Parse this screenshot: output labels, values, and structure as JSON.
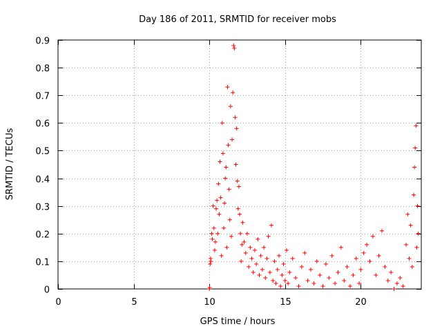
{
  "chart_data": {
    "type": "scatter",
    "title": "Day 186 of 2011, SRMTID for receiver mobs",
    "xlabel": "GPS time / hours",
    "ylabel": "SRMTID / TECUs",
    "xlim": [
      0,
      24
    ],
    "ylim": [
      0,
      0.9
    ],
    "xticks": [
      0,
      5,
      10,
      15,
      20
    ],
    "xtick_labels": [
      "0",
      "5",
      "10",
      "15",
      "20"
    ],
    "yticks": [
      0,
      0.1,
      0.2,
      0.3,
      0.4,
      0.5,
      0.6,
      0.7,
      0.8,
      0.9
    ],
    "ytick_labels": [
      "0",
      "0.1",
      "0.2",
      "0.3",
      "0.4",
      "0.5",
      "0.6",
      "0.7",
      "0.8",
      "0.9"
    ],
    "grid": true,
    "marker": "+",
    "color": "#ff0000",
    "series": [
      {
        "name": "SRMTID",
        "points": [
          [
            10.0,
            0.0
          ],
          [
            10.02,
            0.005
          ],
          [
            10.05,
            0.09
          ],
          [
            10.08,
            0.11
          ],
          [
            10.1,
            0.1
          ],
          [
            10.15,
            0.2
          ],
          [
            10.2,
            0.18
          ],
          [
            10.25,
            0.3
          ],
          [
            10.3,
            0.22
          ],
          [
            10.35,
            0.14
          ],
          [
            10.4,
            0.17
          ],
          [
            10.45,
            0.29
          ],
          [
            10.5,
            0.32
          ],
          [
            10.55,
            0.2
          ],
          [
            10.6,
            0.38
          ],
          [
            10.65,
            0.27
          ],
          [
            10.7,
            0.46
          ],
          [
            10.75,
            0.33
          ],
          [
            10.8,
            0.12
          ],
          [
            10.85,
            0.6
          ],
          [
            10.9,
            0.49
          ],
          [
            10.95,
            0.22
          ],
          [
            11.0,
            0.31
          ],
          [
            11.05,
            0.4
          ],
          [
            11.1,
            0.44
          ],
          [
            11.15,
            0.15
          ],
          [
            11.2,
            0.73
          ],
          [
            11.25,
            0.52
          ],
          [
            11.3,
            0.36
          ],
          [
            11.35,
            0.25
          ],
          [
            11.4,
            0.66
          ],
          [
            11.45,
            0.19
          ],
          [
            11.5,
            0.54
          ],
          [
            11.55,
            0.71
          ],
          [
            11.6,
            0.88
          ],
          [
            11.65,
            0.87
          ],
          [
            11.7,
            0.62
          ],
          [
            11.75,
            0.45
          ],
          [
            11.8,
            0.58
          ],
          [
            11.85,
            0.39
          ],
          [
            11.9,
            0.29
          ],
          [
            11.95,
            0.37
          ],
          [
            12.0,
            0.27
          ],
          [
            12.05,
            0.2
          ],
          [
            12.1,
            0.1
          ],
          [
            12.15,
            0.16
          ],
          [
            12.2,
            0.24
          ],
          [
            12.3,
            0.17
          ],
          [
            12.4,
            0.13
          ],
          [
            12.5,
            0.2
          ],
          [
            12.6,
            0.08
          ],
          [
            12.7,
            0.15
          ],
          [
            12.8,
            0.11
          ],
          [
            12.9,
            0.06
          ],
          [
            13.0,
            0.14
          ],
          [
            13.1,
            0.09
          ],
          [
            13.2,
            0.18
          ],
          [
            13.3,
            0.05
          ],
          [
            13.4,
            0.12
          ],
          [
            13.5,
            0.07
          ],
          [
            13.6,
            0.15
          ],
          [
            13.7,
            0.04
          ],
          [
            13.8,
            0.11
          ],
          [
            13.9,
            0.19
          ],
          [
            14.0,
            0.06
          ],
          [
            14.1,
            0.23
          ],
          [
            14.2,
            0.03
          ],
          [
            14.3,
            0.1
          ],
          [
            14.4,
            0.02
          ],
          [
            14.5,
            0.07
          ],
          [
            14.6,
            0.12
          ],
          [
            14.7,
            0.01
          ],
          [
            14.8,
            0.05
          ],
          [
            14.9,
            0.09
          ],
          [
            15.0,
            0.03
          ],
          [
            15.1,
            0.14
          ],
          [
            15.2,
            0.02
          ],
          [
            15.3,
            0.06
          ],
          [
            15.5,
            0.11
          ],
          [
            15.7,
            0.04
          ],
          [
            15.9,
            0.01
          ],
          [
            16.1,
            0.08
          ],
          [
            16.3,
            0.13
          ],
          [
            16.5,
            0.03
          ],
          [
            16.7,
            0.07
          ],
          [
            16.9,
            0.02
          ],
          [
            17.1,
            0.1
          ],
          [
            17.3,
            0.05
          ],
          [
            17.5,
            0.01
          ],
          [
            17.7,
            0.09
          ],
          [
            17.9,
            0.04
          ],
          [
            18.1,
            0.12
          ],
          [
            18.3,
            0.02
          ],
          [
            18.5,
            0.06
          ],
          [
            18.7,
            0.15
          ],
          [
            18.9,
            0.03
          ],
          [
            19.1,
            0.08
          ],
          [
            19.3,
            0.01
          ],
          [
            19.5,
            0.05
          ],
          [
            19.7,
            0.11
          ],
          [
            19.9,
            0.02
          ],
          [
            20.0,
            0.07
          ],
          [
            20.2,
            0.13
          ],
          [
            20.4,
            0.16
          ],
          [
            20.6,
            0.1
          ],
          [
            20.8,
            0.19
          ],
          [
            21.0,
            0.05
          ],
          [
            21.2,
            0.12
          ],
          [
            21.4,
            0.21
          ],
          [
            21.6,
            0.08
          ],
          [
            21.8,
            0.03
          ],
          [
            22.0,
            0.06
          ],
          [
            22.2,
            0.0
          ],
          [
            22.4,
            0.02
          ],
          [
            22.6,
            0.04
          ],
          [
            22.8,
            0.01
          ],
          [
            23.0,
            0.16
          ],
          [
            23.1,
            0.27
          ],
          [
            23.2,
            0.11
          ],
          [
            23.3,
            0.23
          ],
          [
            23.4,
            0.08
          ],
          [
            23.5,
            0.34
          ],
          [
            23.55,
            0.44
          ],
          [
            23.6,
            0.51
          ],
          [
            23.65,
            0.59
          ],
          [
            23.7,
            0.15
          ],
          [
            23.75,
            0.3
          ],
          [
            23.8,
            0.2
          ]
        ]
      }
    ]
  }
}
